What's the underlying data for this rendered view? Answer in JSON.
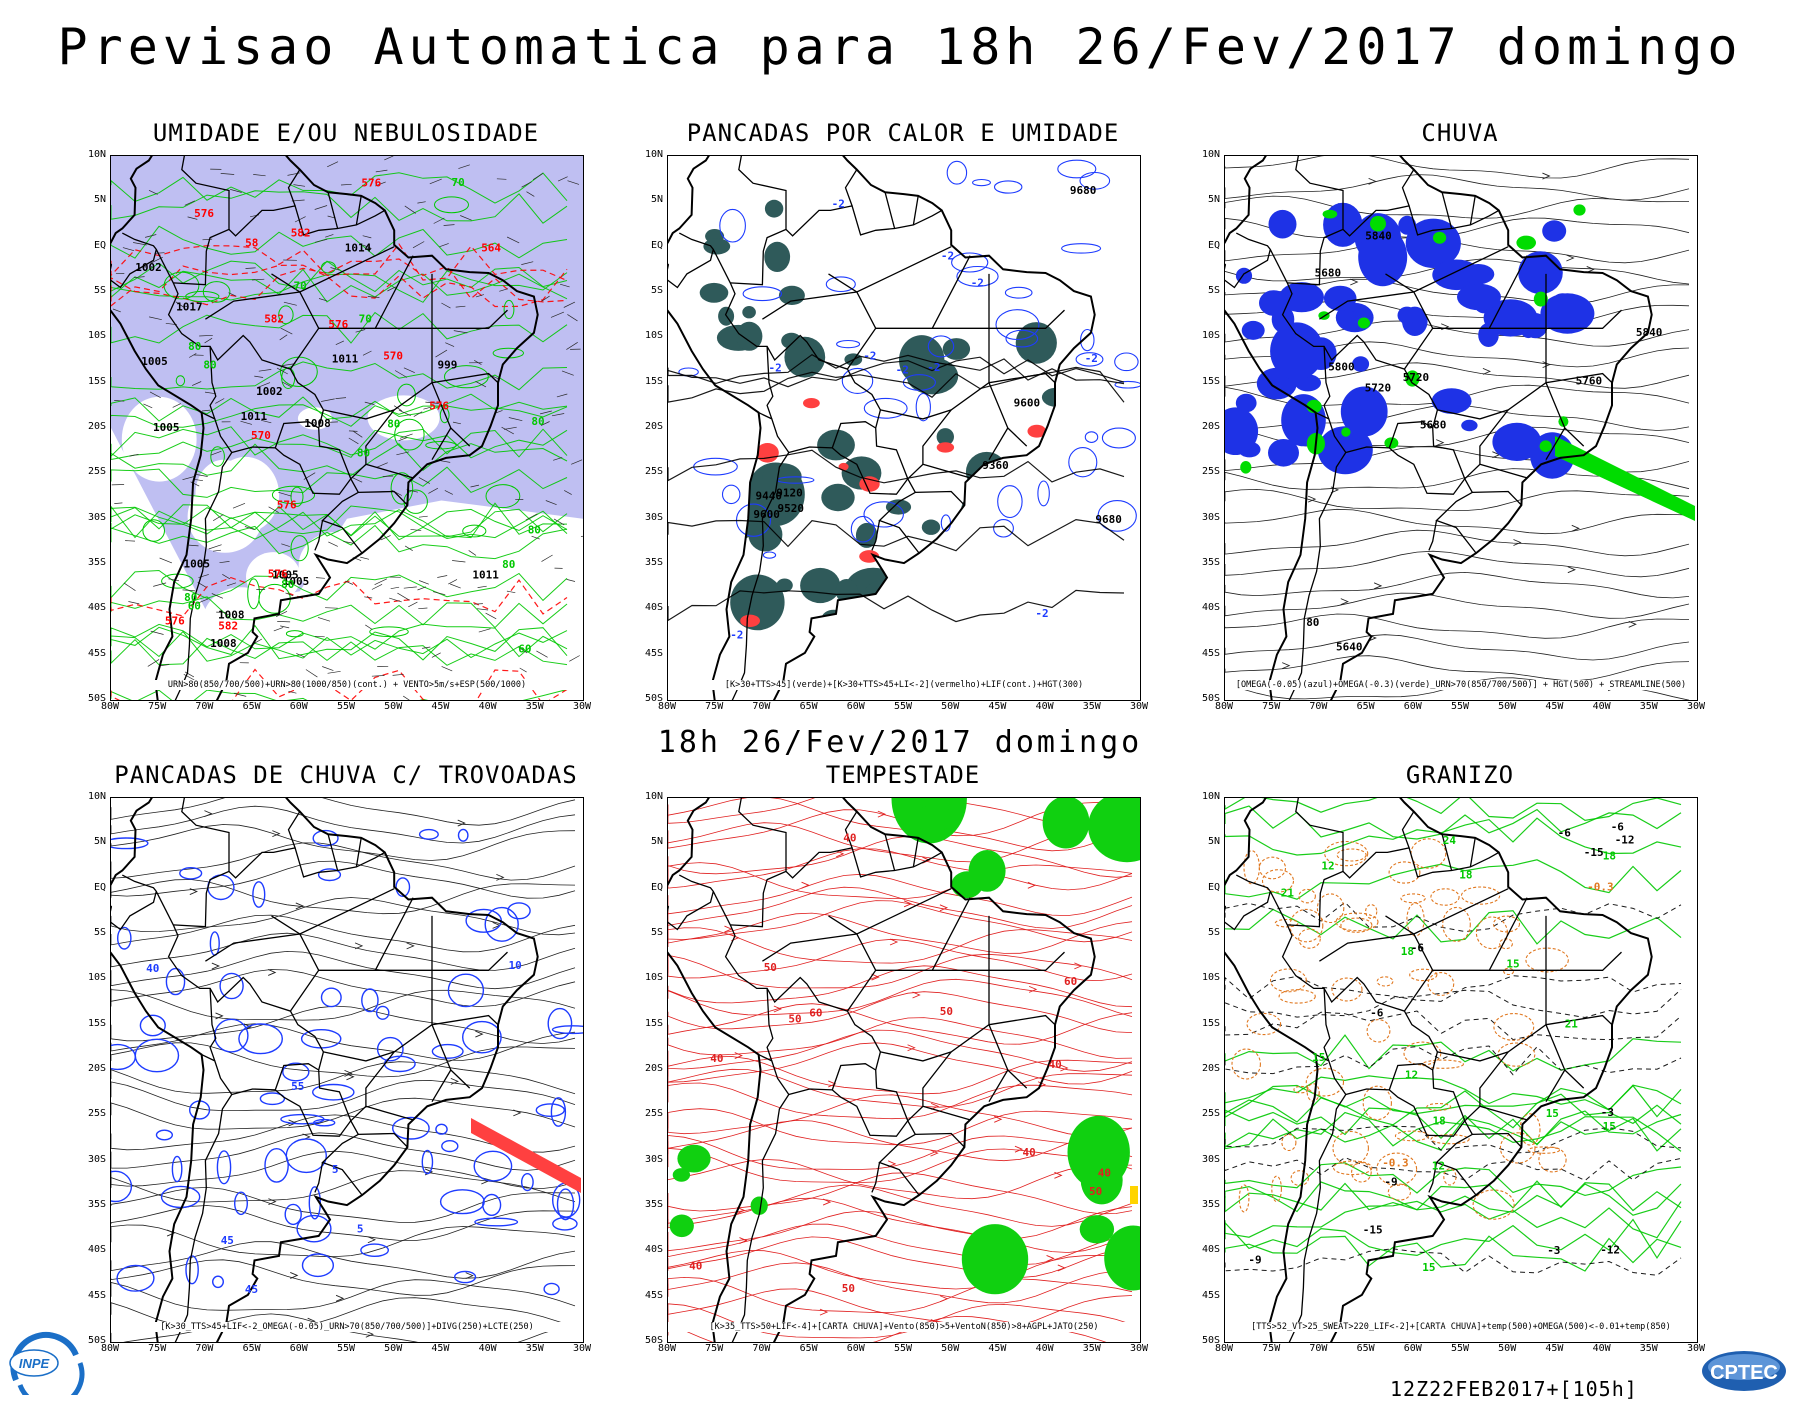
{
  "header": {
    "title": "Previsao Automatica  para 18h 26/Fev/2017 domingo",
    "subtitle": "18h 26/Fev/2017 domingo",
    "run_code": "12Z22FEB2017+[105h]"
  },
  "axes": {
    "lat_labels": [
      "10N",
      "5N",
      "EQ",
      "5S",
      "10S",
      "15S",
      "20S",
      "25S",
      "30S",
      "35S",
      "40S",
      "45S",
      "50S"
    ],
    "lon_labels": [
      "80W",
      "75W",
      "70W",
      "65W",
      "60W",
      "55W",
      "50W",
      "45W",
      "40W",
      "35W",
      "30W"
    ]
  },
  "colors": {
    "humidity_fill": "#b4b4f0",
    "contour_green": "#00c800",
    "contour_red": "#ff0000",
    "contour_blue": "#1e3cff",
    "teal_fill": "#2f5a5a",
    "rain_blue": "#1e32e6",
    "rain_green": "#00dc00",
    "storm_green": "#10d010",
    "hail_orange": "#e07820",
    "black": "#000000"
  },
  "panels": [
    {
      "id": "umidade",
      "title": "UMIDADE E/OU NEBULOSIDADE",
      "legend": "URN>80(850/700/500)+URN>80(1000/850)(cont.) + VENTO>5m/s+ESP(500/1000)",
      "labels": [
        "1008",
        "1011",
        "1011",
        "1005",
        "1008",
        "1005",
        "1005",
        "1002",
        "999",
        "1002",
        "1005",
        "1005",
        "1008",
        "1011",
        "1014",
        "1017",
        "576",
        "576",
        "576",
        "582",
        "576",
        "582",
        "576",
        "570",
        "576",
        "576",
        "570",
        "58",
        "582",
        "564",
        "80",
        "70",
        "80",
        "80",
        "80",
        "60",
        "80",
        "80",
        "60",
        "80",
        "70",
        "80",
        "70",
        "80"
      ]
    },
    {
      "id": "pancadas-calor",
      "title": "PANCADAS POR CALOR E UMIDADE",
      "legend": "[K>30+TTS>45](verde)+[K>30+TTS>45+LI<-2](vermelho)+LIF(cont.)+HGT(300)",
      "labels": [
        "-2",
        "-2",
        "-2",
        "-2",
        "-2",
        "-2",
        "-2",
        "-2",
        "-2",
        "-2",
        "9680",
        "9680",
        "9600",
        "9600",
        "9520",
        "9440",
        "9360",
        "9120"
      ]
    },
    {
      "id": "chuva",
      "title": "CHUVA",
      "legend": "[OMEGA(-0.05)(azul)+OMEGA(-0.3)(verde)_URN>70(850/700/500)] + HGT(500) + STREAMLINE(500)",
      "labels": [
        "5840",
        "5840",
        "5800",
        "5760",
        "5720",
        "5720",
        "5680",
        "5680",
        "5640",
        "80"
      ]
    },
    {
      "id": "trovoadas",
      "title": "PANCADAS DE CHUVA C/ TROVOADAS",
      "legend": "[K>30_TTS>45+LIF<-2_OMEGA(-0.05)_URN>70(850/700/500)]+DIVG(250)+LCTE(250)",
      "labels": [
        "45",
        "40",
        "10",
        "45",
        "55",
        "5",
        "5"
      ]
    },
    {
      "id": "tempestade",
      "title": "TEMPESTADE",
      "legend": "[K>35_TTS>50+LIF<-4]+[CARTA CHUVA]+Vento(850)>5+VentoN(850)>8+AGPL+JATO(250)",
      "labels": [
        "50",
        "40",
        "50",
        "40",
        "60",
        "50",
        "40",
        "50",
        "40",
        "60",
        "50",
        "40",
        "40"
      ]
    },
    {
      "id": "granizo",
      "title": "GRANIZO",
      "legend": "[TTS>52_VT>25_SWEAT>220_LIF<-2]+[CARTA CHUVA]+temp(500)+OMEGA(500)<-0.01+temp(850)",
      "labels": [
        "18",
        "21",
        "-0.3",
        "-6",
        "15",
        "12",
        "15",
        "18",
        "21",
        "24",
        "18",
        "15",
        "-6",
        "-9",
        "-12",
        "-15",
        "-3",
        "-6",
        "-9",
        "-12",
        "-15",
        "12",
        "15",
        "18",
        "-6",
        "-3",
        "15",
        "12",
        "-0.3"
      ]
    }
  ]
}
